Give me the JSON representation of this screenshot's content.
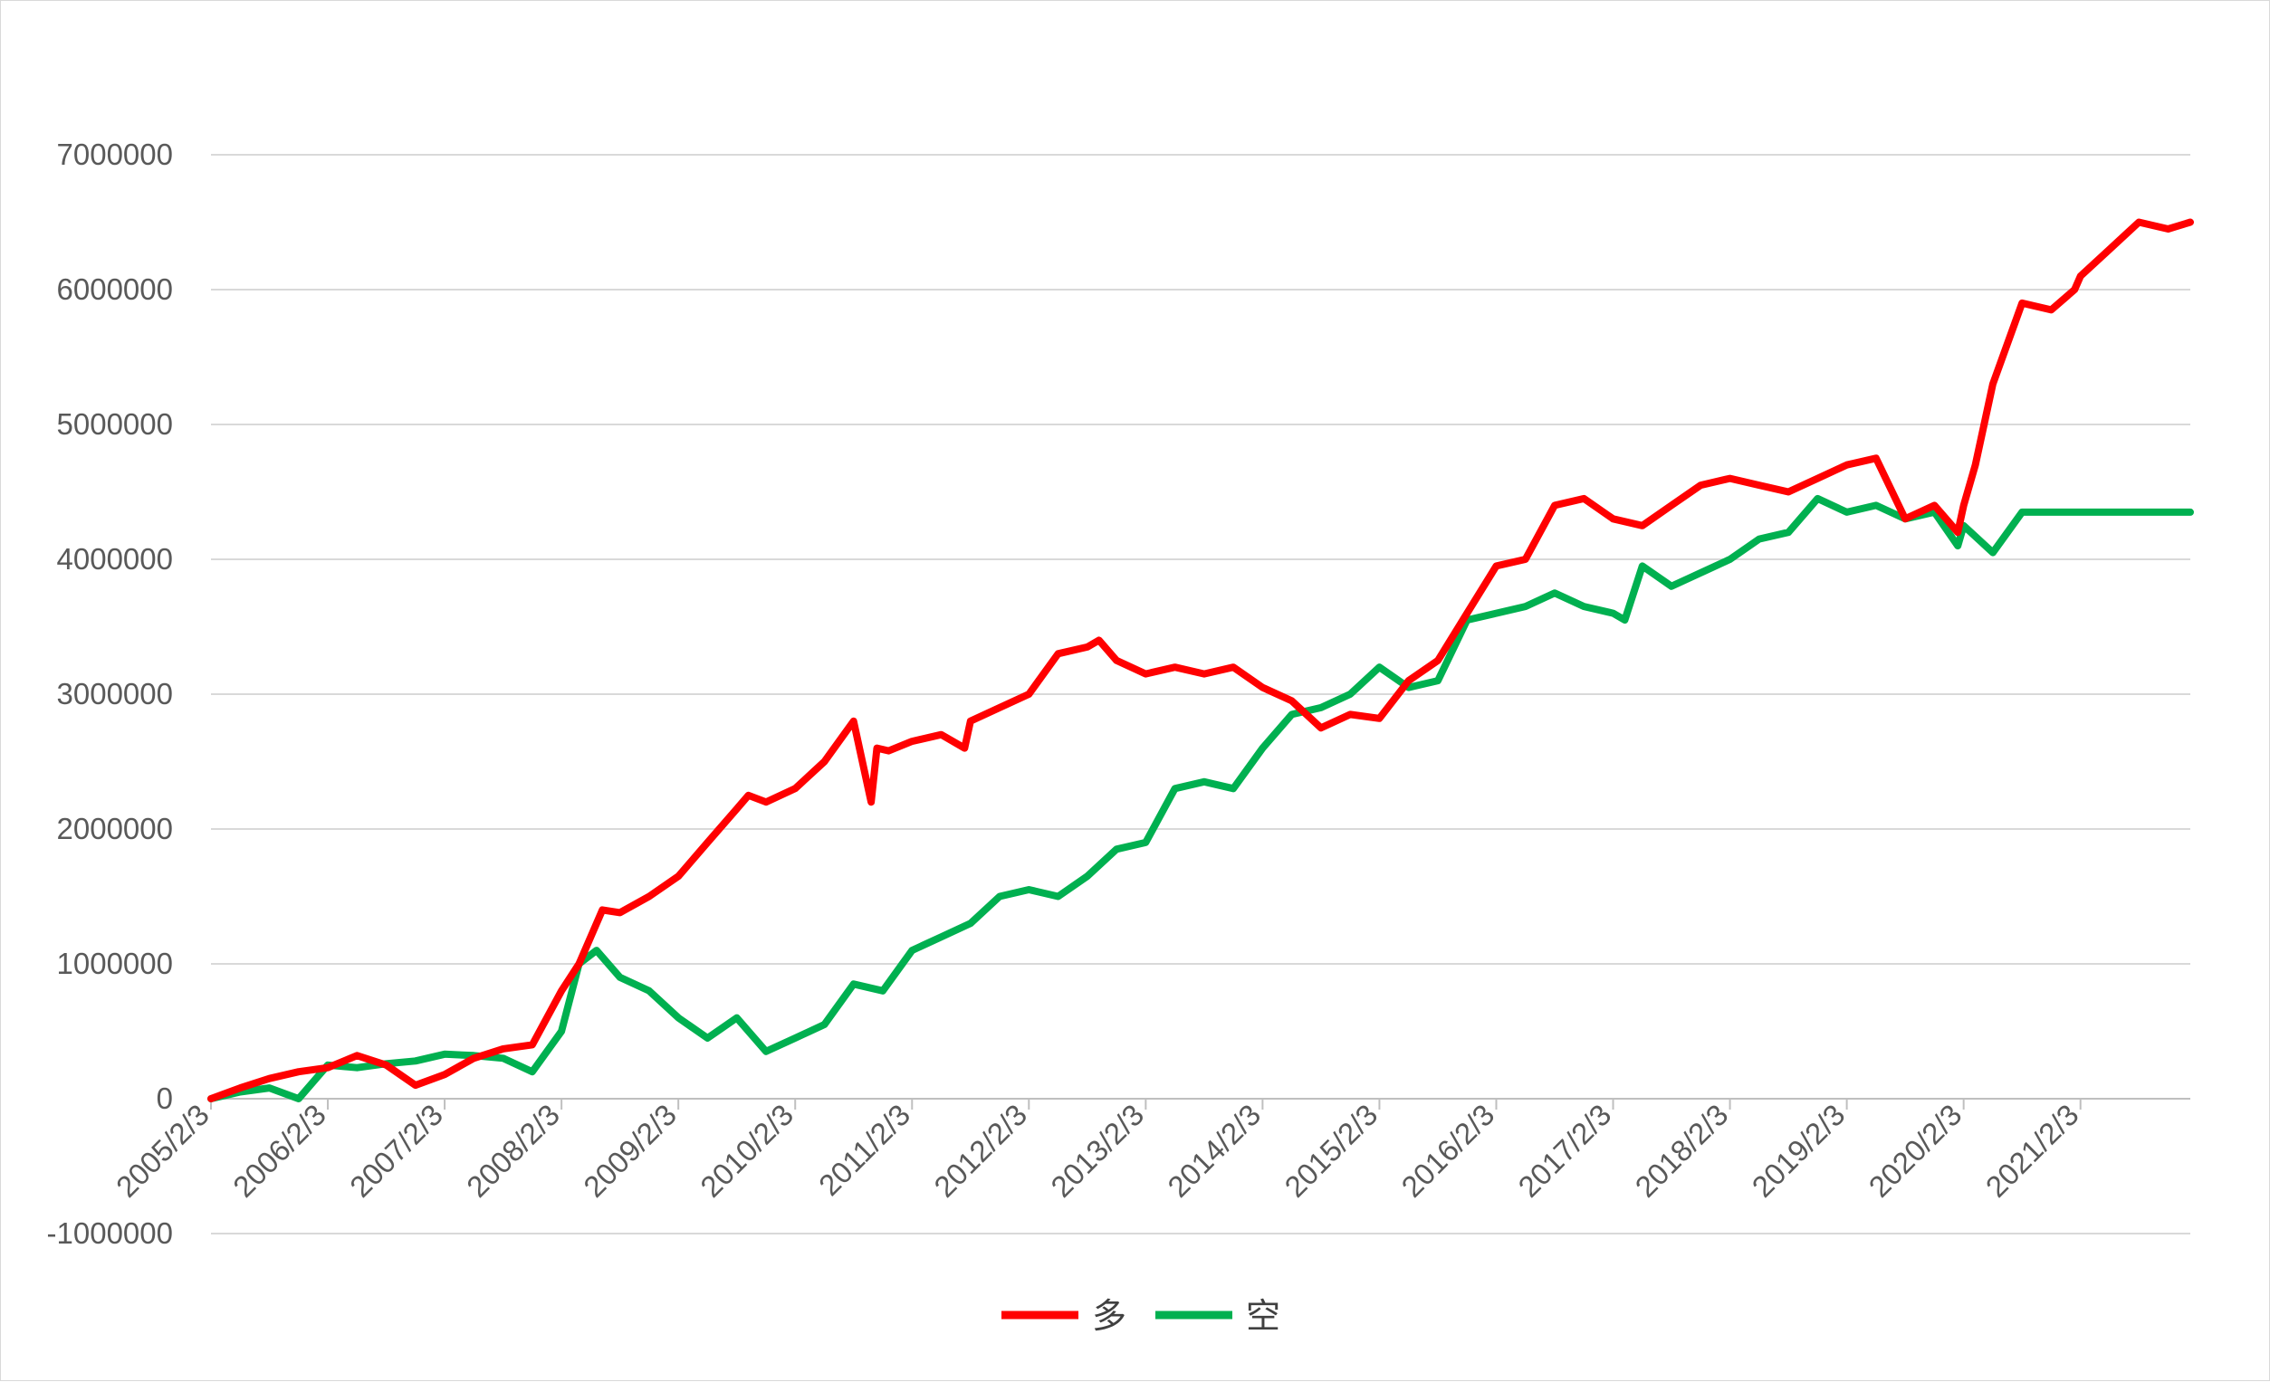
{
  "chart_data": {
    "type": "line",
    "title": "",
    "xlabel": "",
    "ylabel": "",
    "ylim": [
      -1000000,
      7000000
    ],
    "y_ticks": [
      "-1000000",
      "0",
      "1000000",
      "2000000",
      "3000000",
      "4000000",
      "5000000",
      "6000000",
      "7000000"
    ],
    "y_tick_values": [
      -1000000,
      0,
      1000000,
      2000000,
      3000000,
      4000000,
      5000000,
      6000000,
      7000000
    ],
    "x_ticks": [
      "2005/2/3",
      "2006/2/3",
      "2007/2/3",
      "2008/2/3",
      "2009/2/3",
      "2010/2/3",
      "2011/2/3",
      "2012/2/3",
      "2013/2/3",
      "2014/2/3",
      "2015/2/3",
      "2016/2/3",
      "2017/2/3",
      "2018/2/3",
      "2019/2/3",
      "2020/2/3",
      "2021/2/3"
    ],
    "xlim": [
      2005.0,
      2021.94
    ],
    "grid": true,
    "legend_position": "bottom",
    "series": [
      {
        "name": "多",
        "color": "#ff0000",
        "x": [
          2005.0,
          2005.25,
          2005.5,
          2005.75,
          2006.0,
          2006.25,
          2006.5,
          2006.75,
          2007.0,
          2007.25,
          2007.5,
          2007.75,
          2008.0,
          2008.15,
          2008.35,
          2008.5,
          2008.75,
          2009.0,
          2009.25,
          2009.5,
          2009.6,
          2009.75,
          2010.0,
          2010.25,
          2010.5,
          2010.65,
          2010.7,
          2010.8,
          2011.0,
          2011.25,
          2011.45,
          2011.5,
          2011.75,
          2012.0,
          2012.25,
          2012.5,
          2012.6,
          2012.75,
          2013.0,
          2013.25,
          2013.5,
          2013.75,
          2014.0,
          2014.25,
          2014.5,
          2014.75,
          2015.0,
          2015.25,
          2015.5,
          2015.75,
          2016.0,
          2016.25,
          2016.5,
          2016.75,
          2017.0,
          2017.25,
          2017.5,
          2017.75,
          2018.0,
          2018.25,
          2018.5,
          2018.75,
          2019.0,
          2019.25,
          2019.5,
          2019.75,
          2019.95,
          2020.0,
          2020.1,
          2020.25,
          2020.5,
          2020.75,
          2020.95,
          2021.0,
          2021.25,
          2021.5,
          2021.75,
          2021.94
        ],
        "values": [
          0,
          80000,
          150000,
          200000,
          230000,
          320000,
          250000,
          100000,
          180000,
          300000,
          370000,
          400000,
          800000,
          1000000,
          1400000,
          1380000,
          1500000,
          1650000,
          1900000,
          2150000,
          2250000,
          2200000,
          2300000,
          2500000,
          2800000,
          2200000,
          2600000,
          2580000,
          2650000,
          2700000,
          2600000,
          2800000,
          2900000,
          3000000,
          3300000,
          3350000,
          3400000,
          3250000,
          3150000,
          3200000,
          3150000,
          3200000,
          3050000,
          2950000,
          2750000,
          2850000,
          2820000,
          3100000,
          3250000,
          3600000,
          3950000,
          4000000,
          4400000,
          4450000,
          4300000,
          4250000,
          4400000,
          4550000,
          4600000,
          4550000,
          4500000,
          4600000,
          4700000,
          4750000,
          4300000,
          4400000,
          4200000,
          4400000,
          4700000,
          5300000,
          5900000,
          5850000,
          6000000,
          6100000,
          6300000,
          6500000,
          6450000,
          6500000
        ]
      },
      {
        "name": "空",
        "color": "#00b050",
        "x": [
          2005.0,
          2005.25,
          2005.5,
          2005.75,
          2006.0,
          2006.25,
          2006.5,
          2006.75,
          2007.0,
          2007.25,
          2007.5,
          2007.75,
          2008.0,
          2008.15,
          2008.3,
          2008.5,
          2008.75,
          2009.0,
          2009.25,
          2009.5,
          2009.75,
          2010.0,
          2010.25,
          2010.5,
          2010.75,
          2011.0,
          2011.25,
          2011.5,
          2011.75,
          2012.0,
          2012.25,
          2012.5,
          2012.75,
          2013.0,
          2013.25,
          2013.5,
          2013.75,
          2014.0,
          2014.25,
          2014.5,
          2014.75,
          2015.0,
          2015.25,
          2015.5,
          2015.75,
          2016.0,
          2016.25,
          2016.5,
          2016.75,
          2017.0,
          2017.1,
          2017.25,
          2017.5,
          2017.75,
          2018.0,
          2018.25,
          2018.5,
          2018.75,
          2019.0,
          2019.25,
          2019.5,
          2019.75,
          2019.95,
          2020.0,
          2020.25,
          2020.5,
          2020.75,
          2021.0,
          2021.25,
          2021.5,
          2021.75,
          2021.94
        ],
        "values": [
          0,
          50000,
          80000,
          0,
          250000,
          230000,
          260000,
          280000,
          330000,
          320000,
          300000,
          200000,
          500000,
          1000000,
          1100000,
          900000,
          800000,
          600000,
          450000,
          600000,
          350000,
          450000,
          550000,
          850000,
          800000,
          1100000,
          1200000,
          1300000,
          1500000,
          1550000,
          1500000,
          1650000,
          1850000,
          1900000,
          2300000,
          2350000,
          2300000,
          2600000,
          2850000,
          2900000,
          3000000,
          3200000,
          3050000,
          3100000,
          3550000,
          3600000,
          3650000,
          3750000,
          3650000,
          3600000,
          3550000,
          3950000,
          3800000,
          3900000,
          4000000,
          4150000,
          4200000,
          4450000,
          4350000,
          4400000,
          4300000,
          4350000,
          4100000,
          4250000,
          4050000,
          4350000,
          4350000,
          4350000,
          4350000,
          4350000,
          4350000,
          4350000
        ]
      }
    ]
  }
}
